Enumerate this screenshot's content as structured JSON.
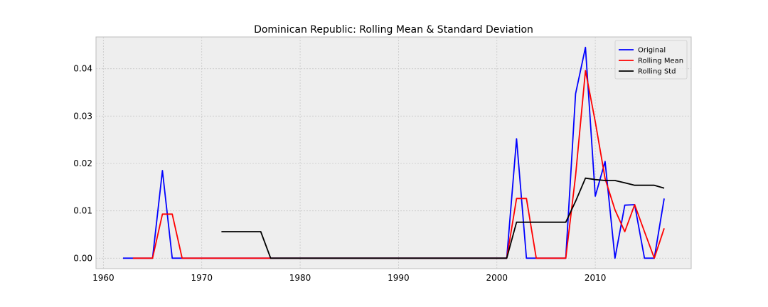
{
  "chart_data": {
    "type": "line",
    "title": "Dominican Republic: Rolling Mean & Standard Deviation",
    "xlabel": "",
    "ylabel": "",
    "xlim": [
      1959.25,
      2019.75
    ],
    "ylim": [
      -0.0022,
      0.0467
    ],
    "xticks": [
      1960,
      1970,
      1980,
      1990,
      2000,
      2010
    ],
    "xtick_labels": [
      "1960",
      "1970",
      "1980",
      "1990",
      "2000",
      "2010"
    ],
    "yticks": [
      0.0,
      0.01,
      0.02,
      0.03,
      0.04
    ],
    "ytick_labels": [
      "0.00",
      "0.01",
      "0.02",
      "0.03",
      "0.04"
    ],
    "grid": true,
    "legend_position": "top-right",
    "series": [
      {
        "name": "Original",
        "color": "#0000ff",
        "x": [
          1962,
          1963,
          1964,
          1965,
          1966,
          1967,
          1968,
          1969,
          1970,
          1971,
          1972,
          1973,
          1974,
          1975,
          1976,
          1977,
          1978,
          1979,
          1980,
          1981,
          1982,
          1983,
          1984,
          1985,
          1986,
          1987,
          1988,
          1989,
          1990,
          1991,
          1992,
          1993,
          1994,
          1995,
          1996,
          1997,
          1998,
          1999,
          2000,
          2001,
          2002,
          2003,
          2004,
          2005,
          2006,
          2007,
          2008,
          2009,
          2010,
          2011,
          2012,
          2013,
          2014,
          2015,
          2016,
          2017
        ],
        "y": [
          0,
          0,
          0,
          0,
          0.0185,
          0,
          0,
          0,
          0,
          0,
          0,
          0,
          0,
          0,
          0,
          0,
          0,
          0,
          0,
          0,
          0,
          0,
          0,
          0,
          0,
          0,
          0,
          0,
          0,
          0,
          0,
          0,
          0,
          0,
          0,
          0,
          0,
          0,
          0,
          0,
          0.0252,
          0,
          0,
          0,
          0,
          0,
          0.0347,
          0.0445,
          0.0131,
          0.0204,
          0,
          0.0112,
          0.0113,
          0,
          0,
          0.0126
        ]
      },
      {
        "name": "Rolling Mean",
        "color": "#ff0000",
        "x": [
          1963,
          1964,
          1965,
          1966,
          1967,
          1968,
          1969,
          1970,
          1971,
          1972,
          1973,
          1974,
          1975,
          1976,
          1977,
          1978,
          1979,
          1980,
          1981,
          1982,
          1983,
          1984,
          1985,
          1986,
          1987,
          1988,
          1989,
          1990,
          1991,
          1992,
          1993,
          1994,
          1995,
          1996,
          1997,
          1998,
          1999,
          2000,
          2001,
          2002,
          2003,
          2004,
          2005,
          2006,
          2007,
          2008,
          2009,
          2010,
          2011,
          2012,
          2013,
          2014,
          2015,
          2016,
          2017
        ],
        "y": [
          0,
          0,
          0,
          0.0093,
          0.0093,
          0,
          0,
          0,
          0,
          0,
          0,
          0,
          0,
          0,
          0,
          0,
          0,
          0,
          0,
          0,
          0,
          0,
          0,
          0,
          0,
          0,
          0,
          0,
          0,
          0,
          0,
          0,
          0,
          0,
          0,
          0,
          0,
          0,
          0,
          0.0126,
          0.0126,
          0,
          0,
          0,
          0,
          0.0174,
          0.0396,
          0.0288,
          0.0168,
          0.0102,
          0.0056,
          0.0113,
          0.0056,
          0,
          0.0063
        ]
      },
      {
        "name": "Rolling Std",
        "color": "#000000",
        "x": [
          1972,
          1973,
          1974,
          1975,
          1976,
          1977,
          1978,
          1979,
          1980,
          1981,
          1982,
          1983,
          1984,
          1985,
          1986,
          1987,
          1988,
          1989,
          1990,
          1991,
          1992,
          1993,
          1994,
          1995,
          1996,
          1997,
          1998,
          1999,
          2000,
          2001,
          2002,
          2003,
          2004,
          2005,
          2006,
          2007,
          2008,
          2009,
          2010,
          2011,
          2012,
          2013,
          2014,
          2015,
          2016,
          2017
        ],
        "y": [
          0.0056,
          0.0056,
          0.0056,
          0.0056,
          0.0056,
          0,
          0,
          0,
          0,
          0,
          0,
          0,
          0,
          0,
          0,
          0,
          0,
          0,
          0,
          0,
          0,
          0,
          0,
          0,
          0,
          0,
          0,
          0,
          0,
          0,
          0.0076,
          0.0076,
          0.0076,
          0.0076,
          0.0076,
          0.0076,
          0.012,
          0.0169,
          0.0166,
          0.0164,
          0.0164,
          0.0159,
          0.0154,
          0.0154,
          0.0154,
          0.0148
        ]
      }
    ]
  }
}
